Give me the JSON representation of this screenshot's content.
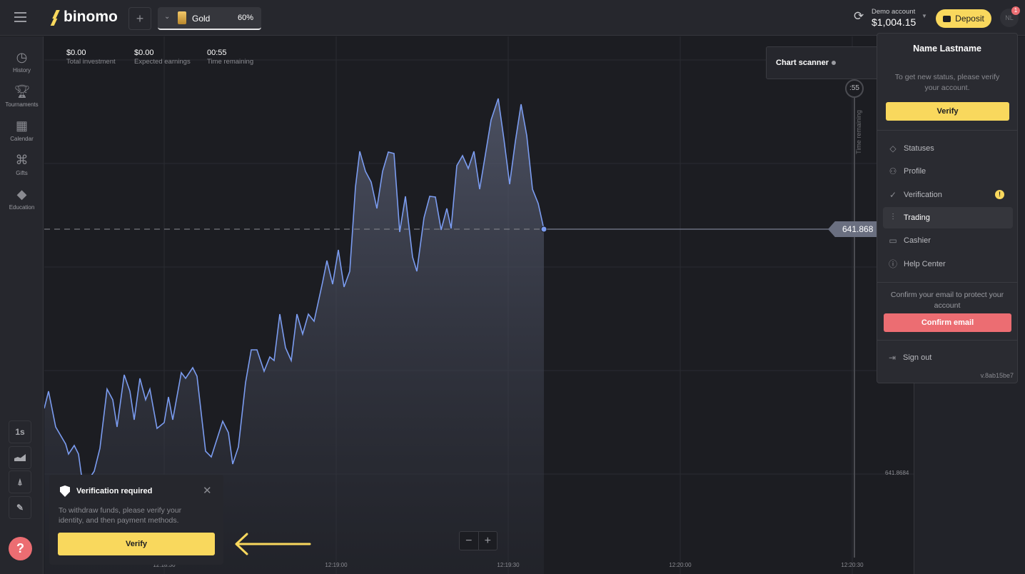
{
  "topbar": {
    "logo": "binomo",
    "add_tab": "+",
    "asset": {
      "name": "Gold",
      "payout": "60%"
    },
    "account": {
      "label": "Demo account",
      "balance": "$1,004.15"
    },
    "deposit": "Deposit",
    "avatar": "NL",
    "badge": "1"
  },
  "sidebar": {
    "items": [
      {
        "label": "History",
        "icon": "clock-icon"
      },
      {
        "label": "Tournaments",
        "icon": "trophy-icon"
      },
      {
        "label": "Calendar",
        "icon": "calendar-icon"
      },
      {
        "label": "Gifts",
        "icon": "gift-icon"
      },
      {
        "label": "Education",
        "icon": "graduation-cap-icon"
      }
    ],
    "tools": {
      "timeframe": "1s"
    },
    "help": "?"
  },
  "stats": [
    {
      "value": "$0.00",
      "label": "Total investment"
    },
    {
      "value": "$0.00",
      "label": "Expected earnings"
    },
    {
      "value": "00:55",
      "label": "Time remaining"
    }
  ],
  "chart": {
    "scanner": "Chart scanner",
    "timer": ":55",
    "time_remaining": "Time remaining",
    "price": "641.868",
    "axis_price": "641.8684",
    "x_ticks": [
      "12:18:30",
      "12:19:00",
      "12:19:30",
      "12:20:00",
      "12:20:30"
    ],
    "zoom_out": "−",
    "zoom_in": "+",
    "line_color": "#7b9cf0"
  },
  "menu": {
    "name": "Name Lastname",
    "status_text": "To get new status, please verify your account.",
    "verify": "Verify",
    "items": [
      {
        "label": "Statuses",
        "icon": "diamond-icon"
      },
      {
        "label": "Profile",
        "icon": "user-icon"
      },
      {
        "label": "Verification",
        "icon": "check-circle-icon",
        "alert": "!"
      },
      {
        "label": "Trading",
        "icon": "chart-icon"
      },
      {
        "label": "Cashier",
        "icon": "wallet-icon"
      },
      {
        "label": "Help Center",
        "icon": "info-icon"
      }
    ],
    "email_text": "Confirm your email to protect your account",
    "confirm_email": "Confirm email",
    "sign_out": "Sign out",
    "version": "v.8ab15be7"
  },
  "toast": {
    "title": "Verification required",
    "text": "To withdraw funds, please verify your identity, and then payment methods.",
    "verify": "Verify"
  },
  "colors": {
    "accent": "#f9d85d",
    "danger": "#ec6d72"
  }
}
